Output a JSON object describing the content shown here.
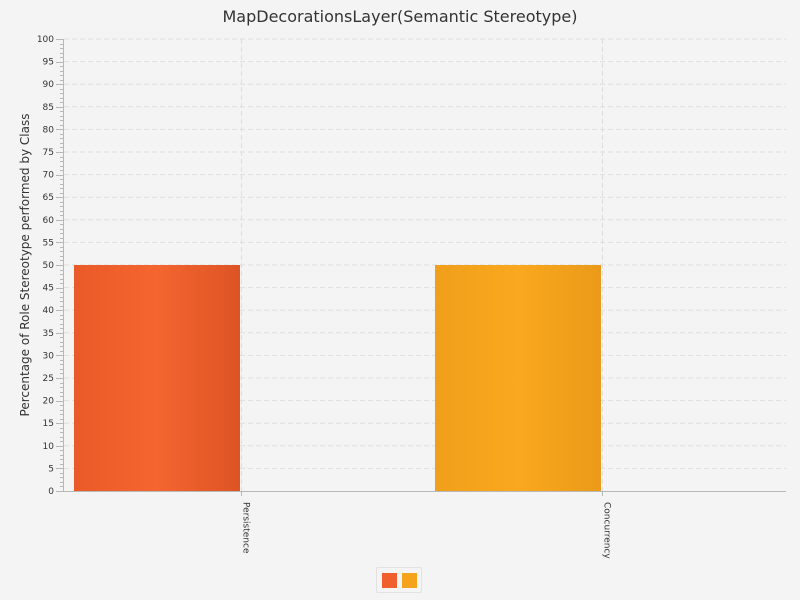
{
  "chart_data": {
    "type": "bar",
    "title": "MapDecorationsLayer(Semantic Stereotype)",
    "xlabel": "",
    "ylabel": "Percentage of Role Stereotype performed by Class",
    "categories": [
      "Persistence",
      "Concurrency"
    ],
    "series": [
      {
        "values": [
          50,
          null
        ],
        "color": "#f0602c"
      },
      {
        "values": [
          null,
          50
        ],
        "color": "#f6a31c"
      }
    ],
    "ylim": [
      0,
      100
    ],
    "y_major_ticks": [
      0,
      5,
      10,
      15,
      20,
      25,
      30,
      35,
      40,
      45,
      50,
      55,
      60,
      65,
      70,
      75,
      80,
      85,
      90,
      95,
      100
    ],
    "grid": true,
    "legend": {
      "position": "bottom",
      "entries": [
        "",
        ""
      ]
    }
  }
}
